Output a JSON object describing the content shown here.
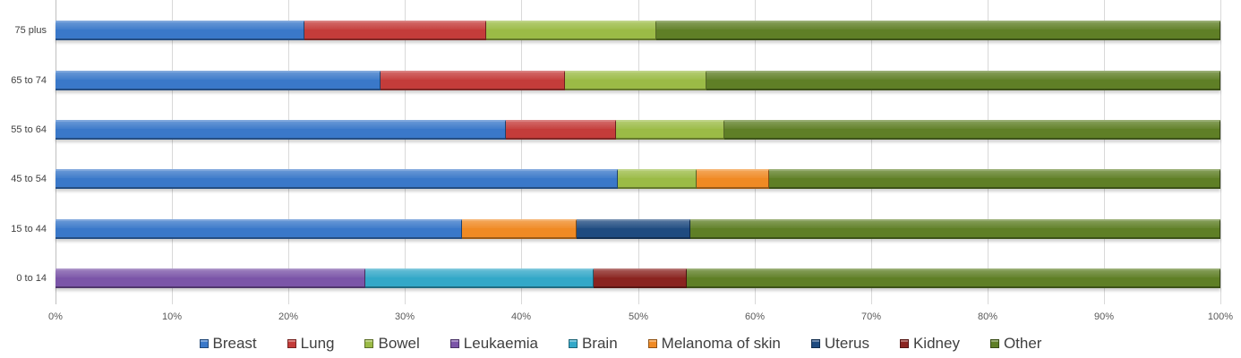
{
  "chart_data": {
    "type": "bar",
    "orientation": "horizontal",
    "stacked": "percent",
    "title": "",
    "xlabel": "",
    "ylabel": "",
    "xlim": [
      0,
      100
    ],
    "x_ticks": [
      "0%",
      "10%",
      "20%",
      "30%",
      "40%",
      "50%",
      "60%",
      "70%",
      "80%",
      "90%",
      "100%"
    ],
    "grid": true,
    "legend_position": "bottom",
    "categories": [
      "75 plus",
      "65 to 74",
      "55 to 64",
      "45 to 54",
      "15 to 44",
      "0 to 14"
    ],
    "series": [
      {
        "name": "Breast",
        "color": "#3a78c9",
        "values": [
          21.4,
          27.9,
          38.7,
          48.3,
          34.9,
          0
        ]
      },
      {
        "name": "Lung",
        "color": "#c43c3a",
        "values": [
          15.6,
          15.8,
          9.4,
          0,
          0,
          0
        ]
      },
      {
        "name": "Bowel",
        "color": "#9bbb46",
        "values": [
          14.6,
          12.2,
          9.3,
          6.7,
          0,
          0
        ]
      },
      {
        "name": "Leukaemia",
        "color": "#7b55a8",
        "values": [
          0,
          0,
          0,
          0,
          0,
          26.6
        ]
      },
      {
        "name": "Brain",
        "color": "#33a8c8",
        "values": [
          0,
          0,
          0,
          0,
          0,
          19.6
        ]
      },
      {
        "name": "Melanoma of skin",
        "color": "#f08a24",
        "values": [
          0,
          0,
          0,
          6.3,
          9.8,
          0
        ]
      },
      {
        "name": "Uterus",
        "color": "#1f4b80",
        "values": [
          0,
          0,
          0,
          0,
          9.8,
          0
        ]
      },
      {
        "name": "Kidney",
        "color": "#8a2420",
        "values": [
          0,
          0,
          0,
          0,
          0,
          8.0
        ]
      },
      {
        "name": "Other",
        "color": "#5f7f26",
        "values": [
          48.4,
          44.1,
          42.6,
          38.7,
          45.5,
          45.8
        ]
      }
    ]
  },
  "axis": {
    "x_ticks": [
      "0%",
      "10%",
      "20%",
      "30%",
      "40%",
      "50%",
      "60%",
      "70%",
      "80%",
      "90%",
      "100%"
    ],
    "y_labels": [
      "75 plus",
      "65 to 74",
      "55 to 64",
      "45 to 54",
      "15 to 44",
      "0 to 14"
    ]
  },
  "legend": {
    "items": [
      {
        "label": "Breast",
        "color": "#3a78c9"
      },
      {
        "label": "Lung",
        "color": "#c43c3a"
      },
      {
        "label": "Bowel",
        "color": "#9bbb46"
      },
      {
        "label": "Leukaemia",
        "color": "#7b55a8"
      },
      {
        "label": "Brain",
        "color": "#33a8c8"
      },
      {
        "label": "Melanoma of skin",
        "color": "#f08a24"
      },
      {
        "label": "Uterus",
        "color": "#1f4b80"
      },
      {
        "label": "Kidney",
        "color": "#8a2420"
      },
      {
        "label": "Other",
        "color": "#5f7f26"
      }
    ]
  }
}
